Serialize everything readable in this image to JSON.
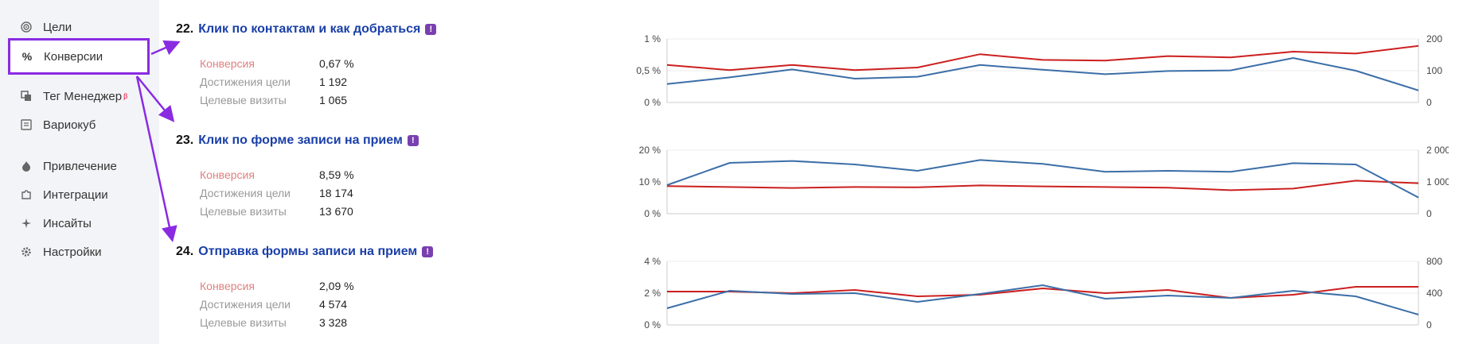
{
  "sidebar": {
    "items": [
      {
        "label": "Цели",
        "icon": "target-icon"
      },
      {
        "label": "Конверсии",
        "icon": "percent-icon"
      },
      {
        "label": "Тег Менеджер",
        "icon": "tag-manager-icon",
        "badge": "β"
      },
      {
        "label": "Вариокуб",
        "icon": "variocube-icon"
      },
      {
        "label": "Привлечение",
        "icon": "flame-icon"
      },
      {
        "label": "Интеграции",
        "icon": "puzzle-icon"
      },
      {
        "label": "Инсайты",
        "icon": "sparkle-icon"
      },
      {
        "label": "Настройки",
        "icon": "gear-icon"
      }
    ]
  },
  "goals": [
    {
      "number": "22.",
      "title": "Клик по контактам и как добраться",
      "metrics": [
        {
          "label": "Конверсия",
          "value": "0,67 %"
        },
        {
          "label": "Достижения цели",
          "value": "1 192"
        },
        {
          "label": "Целевые визиты",
          "value": "1 065"
        }
      ]
    },
    {
      "number": "23.",
      "title": "Клик по форме записи на прием",
      "metrics": [
        {
          "label": "Конверсия",
          "value": "8,59 %"
        },
        {
          "label": "Достижения цели",
          "value": "18 174"
        },
        {
          "label": "Целевые визиты",
          "value": "13 670"
        }
      ]
    },
    {
      "number": "24.",
      "title": "Отправка формы записи на прием",
      "metrics": [
        {
          "label": "Конверсия",
          "value": "2,09 %"
        },
        {
          "label": "Достижения цели",
          "value": "4 574"
        },
        {
          "label": "Целевые визиты",
          "value": "3 328"
        }
      ]
    }
  ],
  "colors": {
    "conversion_line": "#cc1f1f",
    "visits_line": "#3b6ea8",
    "highlight": "#8a2be2",
    "title_link": "#1a3fa8"
  },
  "chart_data": [
    {
      "type": "line",
      "left_ticks": [
        "1 %",
        "0,5 %",
        "0 %"
      ],
      "right_ticks": [
        "200",
        "100",
        "0"
      ],
      "left_ylim": [
        0,
        1
      ],
      "right_ylim": [
        0,
        200
      ],
      "series": [
        {
          "axis": "left",
          "color": "#cc1f1f",
          "values": [
            0.59,
            0.51,
            0.59,
            0.51,
            0.55,
            0.76,
            0.67,
            0.66,
            0.73,
            0.71,
            0.8,
            0.77,
            0.89
          ]
        },
        {
          "axis": "right",
          "color": "#3b6ea8",
          "values": [
            58,
            79,
            104,
            75,
            81,
            118,
            103,
            89,
            99,
            101,
            140,
            100,
            38
          ]
        }
      ]
    },
    {
      "type": "line",
      "left_ticks": [
        "20 %",
        "10 %",
        "0 %"
      ],
      "right_ticks": [
        "2 000",
        "1 000",
        "0"
      ],
      "left_ylim": [
        0,
        20
      ],
      "right_ylim": [
        0,
        2000
      ],
      "series": [
        {
          "axis": "left",
          "color": "#cc1f1f",
          "values": [
            8.7,
            8.4,
            8.1,
            8.4,
            8.3,
            8.9,
            8.6,
            8.4,
            8.2,
            7.4,
            7.9,
            10.4,
            9.6
          ]
        },
        {
          "axis": "right",
          "color": "#3b6ea8",
          "values": [
            900,
            1600,
            1660,
            1550,
            1350,
            1690,
            1570,
            1320,
            1350,
            1320,
            1590,
            1550,
            510
          ]
        }
      ]
    },
    {
      "type": "line",
      "left_ticks": [
        "4 %",
        "2 %",
        "0 %"
      ],
      "right_ticks": [
        "800",
        "400",
        "0"
      ],
      "left_ylim": [
        0,
        4
      ],
      "right_ylim": [
        0,
        800
      ],
      "series": [
        {
          "axis": "left",
          "color": "#cc1f1f",
          "values": [
            2.1,
            2.1,
            2.0,
            2.2,
            1.8,
            1.9,
            2.3,
            2.0,
            2.2,
            1.7,
            1.9,
            2.4,
            2.4
          ]
        },
        {
          "axis": "right",
          "color": "#3b6ea8",
          "values": [
            210,
            430,
            390,
            400,
            290,
            390,
            500,
            330,
            370,
            340,
            430,
            360,
            130
          ]
        }
      ]
    }
  ]
}
